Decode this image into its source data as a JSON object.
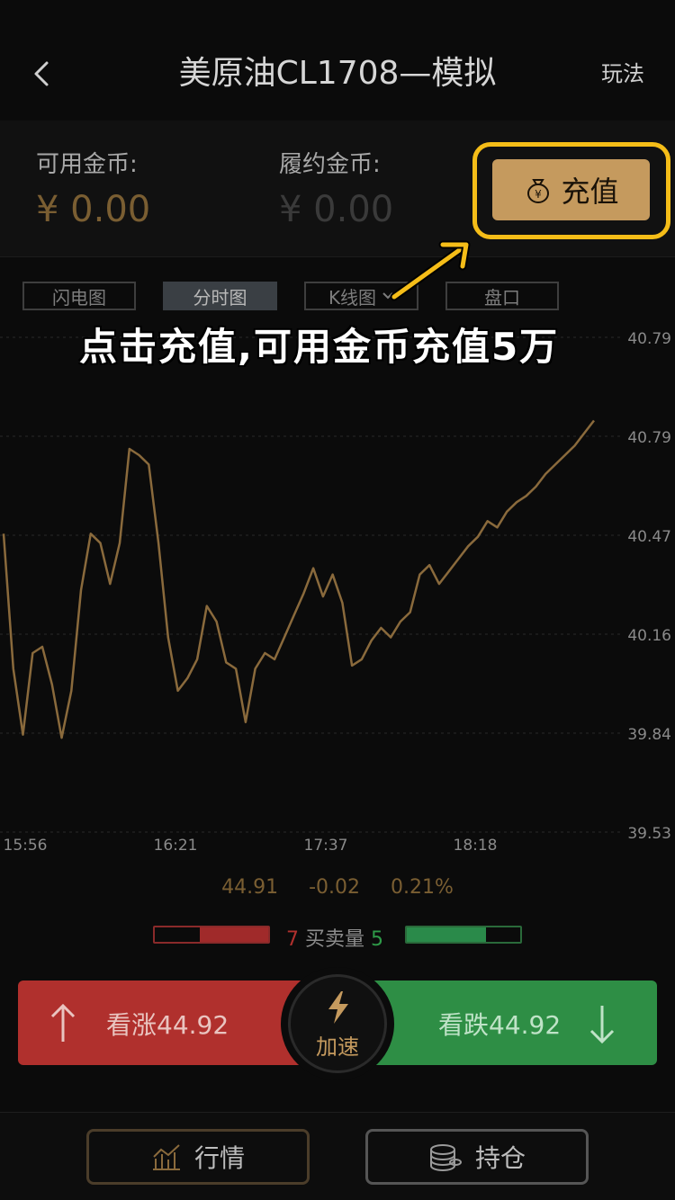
{
  "header": {
    "title": "美原油CL1708—模拟",
    "rules_label": "玩法"
  },
  "account": {
    "available_label": "可用金币:",
    "available_value": "¥ 0.00",
    "margin_label": "履约金币:",
    "margin_value": "¥ 0.00",
    "recharge_label": "充值"
  },
  "tabs": [
    {
      "label": "闪电图",
      "active": false
    },
    {
      "label": "分时图",
      "active": true
    },
    {
      "label": "K线图",
      "active": false
    },
    {
      "label": "盘口",
      "active": false
    }
  ],
  "annotation": "点击充值,可用金币充值5万",
  "chart_data": {
    "type": "line",
    "xlabel": "",
    "ylabel": "",
    "ylim": [
      39.53,
      40.79
    ],
    "y_ticks": [
      "40.79",
      "40.79",
      "40.47",
      "40.16",
      "39.84",
      "39.53"
    ],
    "x_ticks": [
      "15:56",
      "16:21",
      "17:37",
      "18:18"
    ],
    "color": "#8a6a3c",
    "values": [
      40.48,
      40.05,
      39.84,
      40.1,
      40.12,
      40.0,
      39.83,
      39.98,
      40.3,
      40.48,
      40.45,
      40.32,
      40.45,
      40.75,
      40.73,
      40.7,
      40.45,
      40.15,
      39.98,
      40.02,
      40.08,
      40.25,
      40.2,
      40.07,
      40.05,
      39.88,
      40.05,
      40.1,
      40.08,
      40.15,
      40.22,
      40.29,
      40.37,
      40.28,
      40.35,
      40.26,
      40.06,
      40.08,
      40.14,
      40.18,
      40.15,
      40.2,
      40.23,
      40.35,
      40.38,
      40.32,
      40.36,
      40.4,
      40.44,
      40.47,
      40.52,
      40.5,
      40.55,
      40.58,
      40.6,
      40.63,
      40.67,
      40.7,
      40.73,
      40.76,
      40.8,
      40.84
    ]
  },
  "stats": {
    "price": "44.91",
    "change": "-0.02",
    "percent": "0.21%"
  },
  "volume": {
    "buy": "7",
    "label": "买卖量",
    "sell": "5",
    "buy_fraction": 0.6,
    "sell_fraction": 0.7
  },
  "trade": {
    "up_label": "看涨44.92",
    "down_label": "看跌44.92",
    "speed_label": "加速"
  },
  "nav": {
    "market_label": "行情",
    "position_label": "持仓"
  }
}
